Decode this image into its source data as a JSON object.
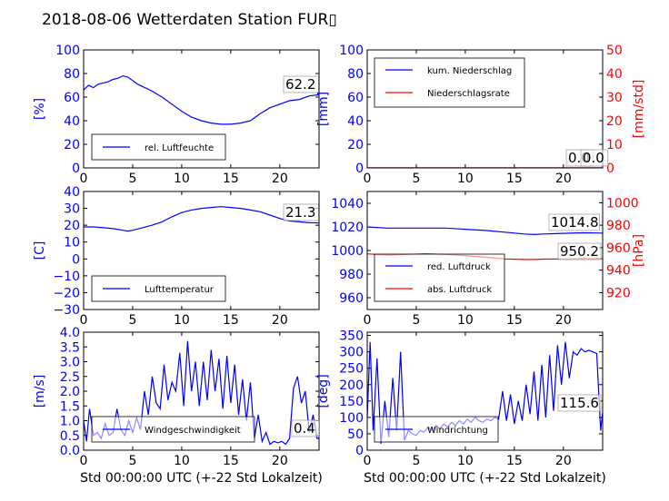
{
  "page": {
    "title": "2018-08-06 Wetterdaten Station FUR▯"
  },
  "colors": {
    "blue": "#0000ff",
    "red": "#ff0000",
    "axis": "#000000"
  },
  "chart_data": [
    {
      "id": "humidity",
      "type": "line",
      "ylabel": "[%]",
      "ylim": [
        0,
        100
      ],
      "yticks": [
        "0",
        "20",
        "40",
        "60",
        "80",
        "100"
      ],
      "xlim": [
        0,
        24
      ],
      "xticks": [
        "0",
        "5",
        "10",
        "15",
        "20"
      ],
      "legend": {
        "position": "lower-left",
        "entries": [
          {
            "name": "rel. Luftfeuchte",
            "color": "#0000ff"
          }
        ]
      },
      "annotations": [
        "62.2"
      ],
      "series": [
        {
          "name": "rel. Luftfeuchte",
          "axis": "left",
          "color": "#0000ff",
          "x": [
            0,
            0.5,
            1,
            1.5,
            2,
            2.5,
            3,
            3.5,
            4,
            4.5,
            5,
            5.5,
            6,
            7,
            8,
            9,
            10,
            11,
            12,
            13,
            14,
            15,
            16,
            17,
            17.5,
            18,
            19,
            20,
            21,
            22,
            23,
            24
          ],
          "y": [
            66,
            70,
            68,
            71,
            72,
            73,
            75,
            76,
            78,
            77,
            74,
            71,
            69,
            65,
            60,
            54,
            48,
            43,
            40,
            38,
            37,
            37,
            38,
            40,
            43,
            46,
            51,
            54,
            57,
            58,
            61,
            62
          ]
        }
      ]
    },
    {
      "id": "precip",
      "type": "line",
      "ylabel": "[mm]",
      "ylabel_right": "[mm/std]",
      "ylim": [
        0,
        100
      ],
      "yticks": [
        "0",
        "20",
        "40",
        "60",
        "80",
        "100"
      ],
      "ylim_right": [
        0,
        50
      ],
      "yticks_right": [
        "0",
        "10",
        "20",
        "30",
        "40",
        "50"
      ],
      "xlim": [
        0,
        24
      ],
      "xticks": [
        "0",
        "5",
        "10",
        "15",
        "20"
      ],
      "legend": {
        "position": "top-left",
        "entries": [
          {
            "name": "kum. Niederschlag",
            "color": "#0000ff"
          },
          {
            "name": "Niederschlagsrate",
            "color": "#ff0000"
          }
        ]
      },
      "annotations": [
        "0.0",
        "0.0"
      ],
      "series": [
        {
          "name": "kum. Niederschlag",
          "axis": "left",
          "color": "#0000ff",
          "x": [
            0,
            24
          ],
          "y": [
            0,
            0
          ]
        },
        {
          "name": "Niederschlagsrate",
          "axis": "right",
          "color": "#ff0000",
          "x": [
            0,
            24
          ],
          "y": [
            0,
            0
          ]
        }
      ]
    },
    {
      "id": "temperature",
      "type": "line",
      "ylabel": "[C]",
      "ylim": [
        -30,
        40
      ],
      "yticks": [
        "−30",
        "−20",
        "−10",
        "0",
        "10",
        "20",
        "30",
        "40"
      ],
      "xlim": [
        0,
        24
      ],
      "xticks": [
        "0",
        "5",
        "10",
        "15",
        "20"
      ],
      "legend": {
        "position": "lower-left",
        "entries": [
          {
            "name": "Lufttemperatur",
            "color": "#0000ff"
          }
        ]
      },
      "annotations": [
        "21.3"
      ],
      "series": [
        {
          "name": "Lufttemperatur",
          "axis": "left",
          "color": "#0000ff",
          "x": [
            0,
            1,
            2,
            3,
            4,
            4.5,
            5,
            6,
            7,
            8,
            9,
            10,
            11,
            12,
            13,
            14,
            15,
            16,
            17,
            18,
            19,
            20,
            21,
            22,
            23,
            24
          ],
          "y": [
            19,
            19,
            18.5,
            18,
            17,
            16.5,
            17,
            18.5,
            20,
            22,
            25,
            27.5,
            29,
            30,
            30.5,
            31,
            30.5,
            30,
            29,
            28,
            26,
            24,
            22.5,
            22,
            21.5,
            21.3
          ]
        }
      ]
    },
    {
      "id": "pressure",
      "type": "line",
      "ylim": [
        950,
        1050
      ],
      "yticks": [
        "960",
        "980",
        "1000",
        "1020",
        "1040"
      ],
      "ylabel_right": "[hPa]",
      "ylim_right": [
        905,
        1010
      ],
      "yticks_right": [
        "920",
        "940",
        "960",
        "980",
        "1000"
      ],
      "xlim": [
        0,
        24
      ],
      "xticks": [
        "0",
        "5",
        "10",
        "15",
        "20"
      ],
      "legend": {
        "position": "lower-left",
        "entries": [
          {
            "name": "red. Luftdruck",
            "color": "#0000ff"
          },
          {
            "name": "abs. Luftdruck",
            "color": "#ff0000"
          }
        ]
      },
      "annotations": [
        "1014.8",
        "950.2"
      ],
      "series": [
        {
          "name": "red. Luftdruck",
          "axis": "left",
          "color": "#0000ff",
          "x": [
            0,
            2,
            4,
            6,
            8,
            10,
            12,
            14,
            16,
            17,
            18,
            20,
            22,
            24
          ],
          "y": [
            1020,
            1019,
            1019,
            1019,
            1019,
            1018,
            1017,
            1015.5,
            1014,
            1013.5,
            1014,
            1014.5,
            1015,
            1014.8
          ]
        },
        {
          "name": "abs. Luftdruck",
          "axis": "right",
          "color": "#ff0000",
          "x": [
            0,
            2,
            4,
            6,
            8,
            10,
            12,
            14,
            16,
            17,
            18,
            20,
            22,
            24
          ],
          "y": [
            954.5,
            953.5,
            954,
            954.5,
            954,
            953,
            951.5,
            950,
            949.5,
            949.5,
            949.8,
            950,
            950.2,
            950.2
          ]
        }
      ]
    },
    {
      "id": "windspeed",
      "type": "line",
      "ylabel": "[m/s]",
      "xlabel": "Std 00:00:00 UTC (+-22 Std Lokalzeit)",
      "ylim": [
        0,
        4
      ],
      "yticks": [
        "0.0",
        "0.5",
        "1.0",
        "1.5",
        "2.0",
        "2.5",
        "3.0",
        "3.5",
        "4.0"
      ],
      "xlim": [
        0,
        24
      ],
      "xticks": [
        "0",
        "5",
        "10",
        "15",
        "20"
      ],
      "legend": {
        "position": "lower-left",
        "entries": [
          {
            "name": "Windgeschwindigkeit",
            "color": "#0000ff"
          }
        ]
      },
      "annotations": [
        "0.4"
      ],
      "series": [
        {
          "name": "Windgeschwindigkeit",
          "axis": "left",
          "color": "#0000ff",
          "x": [
            0,
            0.3,
            0.6,
            1,
            1.4,
            1.8,
            2.2,
            2.6,
            3,
            3.4,
            3.8,
            4.2,
            4.6,
            5,
            5.4,
            5.8,
            6.2,
            6.6,
            7,
            7.4,
            7.8,
            8.2,
            8.6,
            9,
            9.4,
            9.8,
            10.2,
            10.6,
            11,
            11.4,
            11.8,
            12.2,
            12.6,
            13,
            13.4,
            13.8,
            14.2,
            14.6,
            15,
            15.4,
            15.8,
            16.2,
            16.6,
            17,
            17.4,
            17.8,
            18.2,
            18.6,
            19,
            19.4,
            19.8,
            20.2,
            20.6,
            21,
            21.4,
            21.8,
            22.2,
            22.6,
            23,
            23.4,
            23.8,
            24
          ],
          "y": [
            1.0,
            0.3,
            1.4,
            0.5,
            0.6,
            0.4,
            0.9,
            0.5,
            0.6,
            1.4,
            0.7,
            0.5,
            1.0,
            0.6,
            1.1,
            0.7,
            2.0,
            1.2,
            2.5,
            1.6,
            1.4,
            2.9,
            1.7,
            2.3,
            2.0,
            3.3,
            1.5,
            3.7,
            2.0,
            3.0,
            1.5,
            3.0,
            1.7,
            3.4,
            2.0,
            3.1,
            1.4,
            3.2,
            1.6,
            2.9,
            1.2,
            2.4,
            1.0,
            2.3,
            0.4,
            1.2,
            0.3,
            0.6,
            0.2,
            0.3,
            0.25,
            0.3,
            0.2,
            0.4,
            2.1,
            2.5,
            1.6,
            2.0,
            0.6,
            1.2,
            0.4,
            0.4
          ]
        }
      ]
    },
    {
      "id": "winddir",
      "type": "line",
      "ylabel": "[deg]",
      "xlabel": "Std 00:00:00 UTC (+-22 Std Lokalzeit)",
      "ylim": [
        0,
        360
      ],
      "yticks": [
        "0",
        "50",
        "100",
        "150",
        "200",
        "250",
        "300",
        "350"
      ],
      "xlim": [
        0,
        24
      ],
      "xticks": [
        "0",
        "5",
        "10",
        "15",
        "20"
      ],
      "legend": {
        "position": "lower-left",
        "entries": [
          {
            "name": "Windrichtung",
            "color": "#0000ff"
          }
        ]
      },
      "annotations": [
        "115.6"
      ],
      "series": [
        {
          "name": "Windrichtung",
          "axis": "left",
          "color": "#0000ff",
          "x": [
            0,
            0.3,
            0.6,
            1,
            1.4,
            1.8,
            2.2,
            2.6,
            3,
            3.4,
            3.8,
            4.2,
            4.6,
            5,
            5.4,
            5.8,
            6.2,
            6.6,
            7,
            7.4,
            7.8,
            8.2,
            8.6,
            9,
            9.4,
            9.8,
            10.2,
            10.6,
            11,
            11.4,
            11.8,
            12.2,
            12.6,
            13,
            13.4,
            13.8,
            14.2,
            14.6,
            15,
            15.4,
            15.8,
            16.2,
            16.6,
            17,
            17.4,
            17.8,
            18.2,
            18.6,
            19,
            19.4,
            19.8,
            20.2,
            20.6,
            21,
            21.4,
            21.8,
            22.2,
            22.6,
            23,
            23.4,
            23.8,
            24
          ],
          "y": [
            100,
            330,
            60,
            280,
            20,
            150,
            40,
            220,
            60,
            300,
            30,
            60,
            50,
            45,
            60,
            55,
            70,
            60,
            75,
            65,
            80,
            70,
            85,
            75,
            90,
            80,
            95,
            85,
            100,
            90,
            85,
            95,
            90,
            100,
            95,
            180,
            90,
            170,
            80,
            150,
            90,
            200,
            110,
            240,
            90,
            260,
            100,
            290,
            120,
            320,
            200,
            330,
            220,
            300,
            290,
            310,
            300,
            305,
            300,
            295,
            60,
            115.6
          ]
        }
      ]
    }
  ]
}
